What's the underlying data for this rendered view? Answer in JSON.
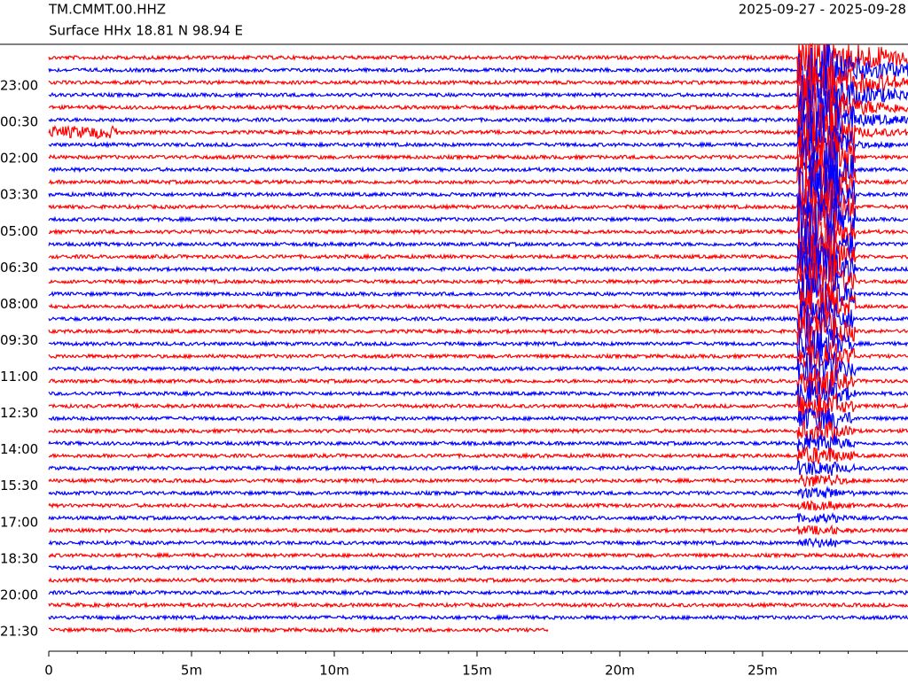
{
  "chart_data": {
    "type": "helicorder",
    "title": "TM.CMMT.00.HHZ",
    "subtitle": "Surface HHx  18.81 N 98.94 E",
    "date_range": "2025-09-27 - 2025-09-28",
    "row_labels": [
      "23:00",
      "00:30",
      "02:00",
      "03:30",
      "05:00",
      "06:30",
      "08:00",
      "09:30",
      "11:00",
      "12:30",
      "14:00",
      "15:30",
      "17:00",
      "18:30",
      "20:00",
      "21:30"
    ],
    "xlim": [
      0,
      30
    ],
    "xticks": [
      {
        "value": 0,
        "label": "0"
      },
      {
        "value": 5,
        "label": "5m"
      },
      {
        "value": 10,
        "label": "10m"
      },
      {
        "value": 15,
        "label": "15m"
      },
      {
        "value": 20,
        "label": "20m"
      },
      {
        "value": 25,
        "label": "25m"
      }
    ],
    "colors": [
      "#ff0000",
      "#0000ff"
    ]
  }
}
